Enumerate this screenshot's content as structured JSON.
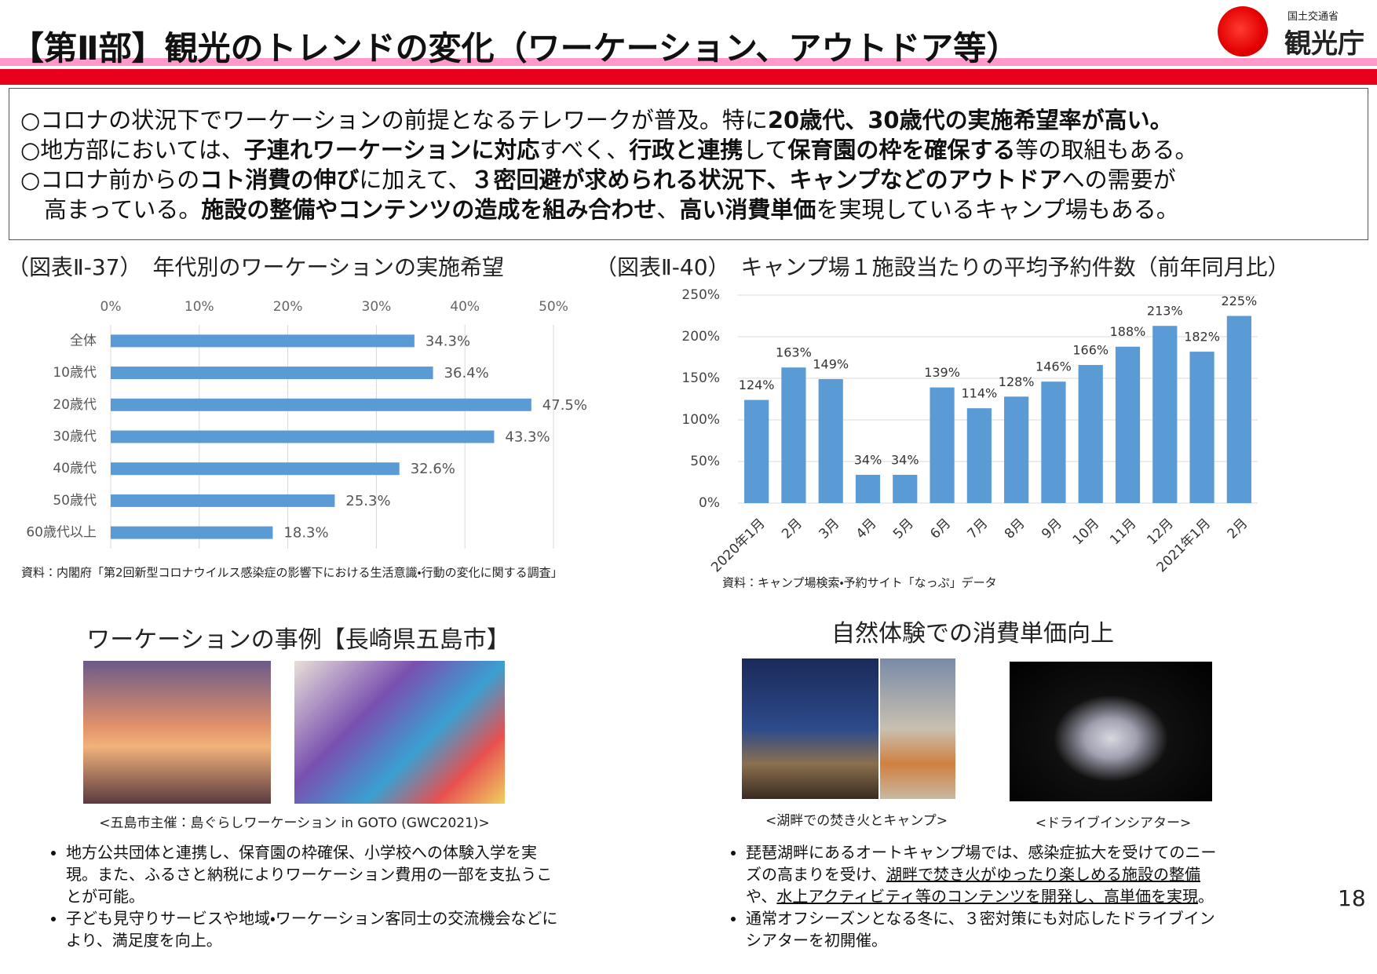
{
  "header": {
    "title": "【第Ⅱ部】観光のトレンドの変化（ワーケーション、アウトドア等）",
    "logo_small": "国土交通省",
    "logo": "観光庁"
  },
  "summary": [
    [
      {
        "text": "○コロナの状況下でワーケーションの前提となるテレワークが普及。特に",
        "bold": false
      },
      {
        "text": "20歳代、30歳代の実施希望率が高い。",
        "bold": true
      }
    ],
    [
      {
        "text": "○地方部においては、",
        "bold": false
      },
      {
        "text": "子連れワーケーションに対応",
        "bold": true
      },
      {
        "text": "すべく、",
        "bold": false
      },
      {
        "text": "行政と連携",
        "bold": true
      },
      {
        "text": "して",
        "bold": false
      },
      {
        "text": "保育園の枠を確保する",
        "bold": true
      },
      {
        "text": "等の取組もある。",
        "bold": false
      }
    ],
    [
      {
        "text": "○コロナ前からの",
        "bold": false
      },
      {
        "text": "コト消費の伸び",
        "bold": true
      },
      {
        "text": "に加えて、",
        "bold": false
      },
      {
        "text": "３密回避が求められる状況下、キャンプなどのアウトドア",
        "bold": true
      },
      {
        "text": "への需要が",
        "bold": false
      }
    ],
    [
      {
        "text": "高まっている。",
        "bold": false
      },
      {
        "text": "施設の整備やコンテンツの造成を組み合わせ",
        "bold": true
      },
      {
        "text": "、",
        "bold": false
      },
      {
        "text": "高い消費単価",
        "bold": true
      },
      {
        "text": "を実現しているキャンプ場もある。",
        "bold": false
      }
    ]
  ],
  "chart_data": [
    {
      "type": "bar",
      "orientation": "horizontal",
      "title": "（図表Ⅱ-37）　年代別のワーケーションの実施希望",
      "categories": [
        "全体",
        "10歳代",
        "20歳代",
        "30歳代",
        "40歳代",
        "50歳代",
        "60歳代以上"
      ],
      "values": [
        34.3,
        36.4,
        47.5,
        43.3,
        32.6,
        25.3,
        18.3
      ],
      "value_labels": [
        "34.3%",
        "36.4%",
        "47.5%",
        "43.3%",
        "32.6%",
        "25.3%",
        "18.3%"
      ],
      "color": "#5b9bd5",
      "xlim": [
        0,
        50
      ],
      "xticks": [
        {
          "value": 0,
          "label": "0%"
        },
        {
          "value": 10,
          "label": "10%"
        },
        {
          "value": 20,
          "label": "20%"
        },
        {
          "value": 30,
          "label": "30%"
        },
        {
          "value": 40,
          "label": "40%"
        },
        {
          "value": 50,
          "label": "50%"
        }
      ],
      "grid": true,
      "source": "資料：内閣府「第2回新型コロナウイルス感染症の影響下における生活意識・行動の変化に関する調査」"
    },
    {
      "type": "bar",
      "orientation": "vertical",
      "title": "（図表Ⅱ-40）　キャンプ場１施設当たりの平均予約件数（前年同月比）",
      "categories": [
        "2020年1月",
        "2月",
        "3月",
        "4月",
        "5月",
        "6月",
        "7月",
        "8月",
        "9月",
        "10月",
        "11月",
        "12月",
        "2021年1月",
        "2月"
      ],
      "values": [
        124,
        163,
        149,
        34,
        34,
        139,
        114,
        128,
        146,
        166,
        188,
        213,
        182,
        225
      ],
      "value_labels": [
        "124%",
        "163%",
        "149%",
        "34%",
        "34%",
        "139%",
        "114%",
        "128%",
        "146%",
        "166%",
        "188%",
        "213%",
        "182%",
        "225%"
      ],
      "color": "#5b9bd5",
      "ylim": [
        0,
        250
      ],
      "yticks": [
        {
          "value": 0,
          "label": "0%"
        },
        {
          "value": 50,
          "label": "50%"
        },
        {
          "value": 100,
          "label": "100%"
        },
        {
          "value": 150,
          "label": "150%"
        },
        {
          "value": 200,
          "label": "200%"
        },
        {
          "value": 250,
          "label": "250%"
        }
      ],
      "grid": true,
      "source": "資料：キャンプ場検索・予約サイト「なっぷ」データ"
    }
  ],
  "left_case": {
    "title": "ワーケーションの事例【長崎県五島市】",
    "caption": "<五島市主催：島ぐらしワーケーション in GOTO (GWC2021)>",
    "bullets": [
      [
        {
          "text": "地方公共団体と連携し、保育園の枠確保、小学校への体験入学を実現。また、ふるさと納税によりワーケーション費用の一部を支払うことが可能。",
          "underline": false
        }
      ],
      [
        {
          "text": "子ども見守りサービスや地域・ワーケーション客同士の交流機会などにより、満足度を向上。",
          "underline": false
        }
      ]
    ]
  },
  "right_case": {
    "title": "自然体験での消費単価向上",
    "captions": [
      "<湖畔での焚き火とキャンプ>",
      "<ドライブインシアター>"
    ],
    "bullets": [
      [
        {
          "text": "琵琶湖畔にあるオートキャンプ場では、感染症拡大を受けてのニーズの高まりを受け、",
          "underline": false
        },
        {
          "text": "湖畔で焚き火がゆったり楽しめる施設の整備",
          "underline": true
        },
        {
          "text": "や、",
          "underline": false
        },
        {
          "text": "水上アクティビティ等のコンテンツを開発し、高単価を実現",
          "underline": true
        },
        {
          "text": "。",
          "underline": false
        }
      ],
      [
        {
          "text": "通常オフシーズンとなる冬に、３密対策にも対応したドライブインシアターを初開催。",
          "underline": false
        }
      ]
    ]
  },
  "page_number": "18"
}
